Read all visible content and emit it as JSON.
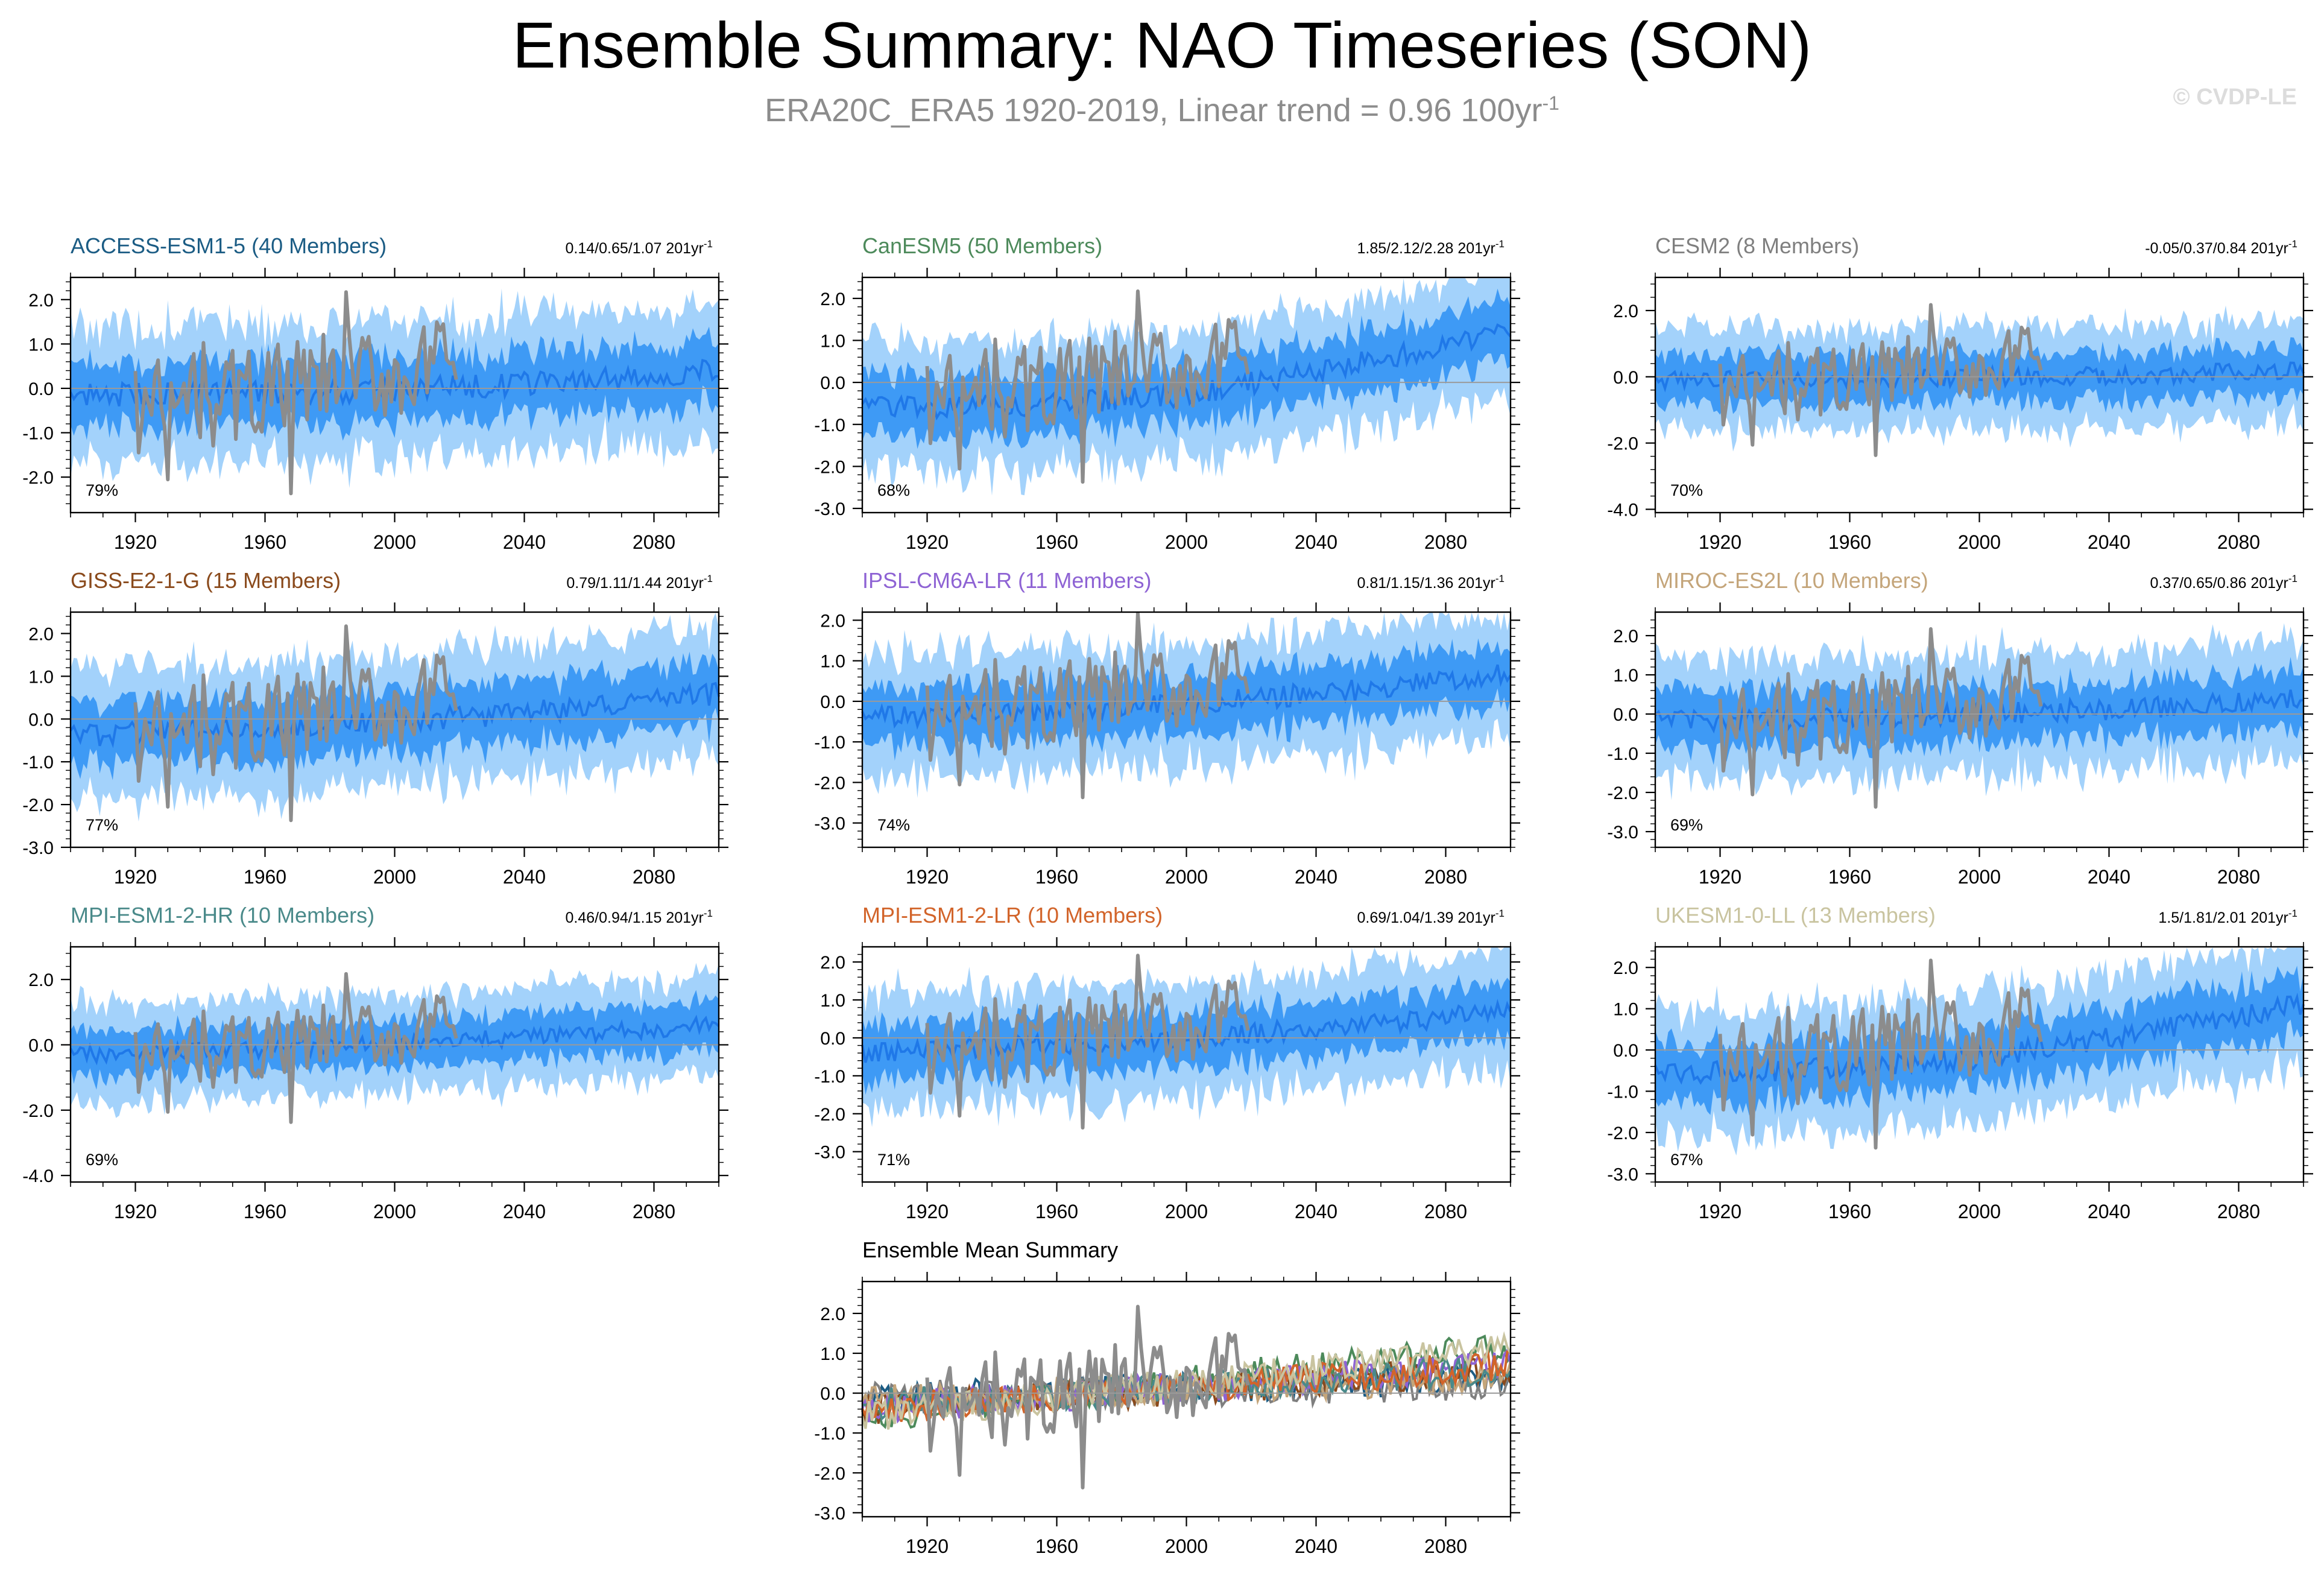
{
  "title": "Ensemble Summary: NAO Timeseries (SON)",
  "subtitle": "ERA20C_ERA5 1920-2019, Linear trend = 0.96 100yr",
  "subtitle_sup": "-1",
  "watermark": "© CVDP-LE",
  "colors": {
    "outer_band": "#a3d2fb",
    "inner_band": "#3e9af5",
    "ensemble_mean": "#1f78e8",
    "observations": "#8c8c8c",
    "zero_line": "#9a9a9a"
  },
  "chart_data": [
    {
      "type": "area",
      "panel": "ACCESS-ESM1-5",
      "title": "ACCESS-ESM1-5 (40 Members)",
      "title_color": "#1b5c84",
      "trend_label": "0.14/0.65/1.07 201yr",
      "trend_sup": "-1",
      "percent_label": "79%",
      "x_range": [
        1900,
        2100
      ],
      "x_ticks": [
        1920,
        1960,
        2000,
        2040,
        2080
      ],
      "ylim": [
        -2.8,
        2.5
      ],
      "y_ticks": [
        -2.0,
        -1.0,
        0.0,
        1.0,
        2.0
      ],
      "y_tick_labels": [
        "-2.0",
        "-1.0",
        "0.0",
        "1.0",
        "2.0"
      ],
      "series": [
        {
          "name": "ensemble mean",
          "x": [
            1900,
            1950,
            2000,
            2050,
            2100
          ],
          "values": [
            -0.15,
            -0.1,
            -0.05,
            0.15,
            0.4
          ]
        },
        {
          "name": "ERA20C_ERA5",
          "x": [
            1920,
            2019
          ],
          "values": [
            -0.5,
            0.5
          ]
        }
      ]
    },
    {
      "type": "area",
      "panel": "CanESM5",
      "title": "CanESM5 (50 Members)",
      "title_color": "#4d8a5b",
      "trend_label": "1.85/2.12/2.28 201yr",
      "trend_sup": "-1",
      "percent_label": "68%",
      "x_range": [
        1900,
        2100
      ],
      "x_ticks": [
        1920,
        1960,
        2000,
        2040,
        2080
      ],
      "ylim": [
        -3.1,
        2.5
      ],
      "y_ticks": [
        -3.0,
        -2.0,
        -1.0,
        0.0,
        1.0,
        2.0
      ],
      "y_tick_labels": [
        "-3.0",
        "-2.0",
        "-1.0",
        "0.0",
        "1.0",
        "2.0"
      ],
      "series": [
        {
          "name": "ensemble mean",
          "x": [
            1900,
            1950,
            2000,
            2050,
            2100
          ],
          "values": [
            -0.6,
            -0.55,
            -0.3,
            0.4,
            1.2
          ]
        },
        {
          "name": "ERA20C_ERA5",
          "x": [
            1920,
            2019
          ],
          "values": [
            -0.5,
            0.5
          ]
        }
      ]
    },
    {
      "type": "area",
      "panel": "CESM2",
      "title": "CESM2 (8 Members)",
      "title_color": "#7f7f7f",
      "trend_label": "-0.05/0.37/0.84 201yr",
      "trend_sup": "-1",
      "percent_label": "70%",
      "x_range": [
        1900,
        2100
      ],
      "x_ticks": [
        1920,
        1960,
        2000,
        2040,
        2080
      ],
      "ylim": [
        -4.1,
        3.0
      ],
      "y_ticks": [
        -4.0,
        -2.0,
        0.0,
        2.0
      ],
      "y_tick_labels": [
        "-4.0",
        "-2.0",
        "0.0",
        "2.0"
      ],
      "series": [
        {
          "name": "ensemble mean",
          "x": [
            1900,
            1950,
            2000,
            2050,
            2100
          ],
          "values": [
            -0.1,
            -0.05,
            0.0,
            0.05,
            0.2
          ]
        },
        {
          "name": "ERA20C_ERA5",
          "x": [
            1920,
            2019
          ],
          "values": [
            -0.5,
            0.5
          ]
        }
      ]
    },
    {
      "type": "area",
      "panel": "GISS-E2-1-G",
      "title": "GISS-E2-1-G (15 Members)",
      "title_color": "#8a4a1c",
      "trend_label": "0.79/1.11/1.44 201yr",
      "trend_sup": "-1",
      "percent_label": "77%",
      "x_range": [
        1900,
        2100
      ],
      "x_ticks": [
        1920,
        1960,
        2000,
        2040,
        2080
      ],
      "ylim": [
        -3.0,
        2.5
      ],
      "y_ticks": [
        -3.0,
        -2.0,
        -1.0,
        0.0,
        1.0,
        2.0
      ],
      "y_tick_labels": [
        "-3.0",
        "-2.0",
        "-1.0",
        "0.0",
        "1.0",
        "2.0"
      ],
      "series": [
        {
          "name": "ensemble mean",
          "x": [
            1900,
            1950,
            2000,
            2050,
            2100
          ],
          "values": [
            -0.4,
            -0.2,
            -0.05,
            0.2,
            0.6
          ]
        },
        {
          "name": "ERA20C_ERA5",
          "x": [
            1920,
            2019
          ],
          "values": [
            -0.5,
            0.5
          ]
        }
      ]
    },
    {
      "type": "area",
      "panel": "IPSL-CM6A-LR",
      "title": "IPSL-CM6A-LR (11 Members)",
      "title_color": "#8e63d4",
      "trend_label": "0.81/1.15/1.36 201yr",
      "trend_sup": "-1",
      "percent_label": "74%",
      "x_range": [
        1900,
        2100
      ],
      "x_ticks": [
        1920,
        1960,
        2000,
        2040,
        2080
      ],
      "ylim": [
        -3.6,
        2.2
      ],
      "y_ticks": [
        -3.0,
        -2.0,
        -1.0,
        0.0,
        1.0,
        2.0
      ],
      "y_tick_labels": [
        "-3.0",
        "-2.0",
        "-1.0",
        "0.0",
        "1.0",
        "2.0"
      ],
      "series": [
        {
          "name": "ensemble mean",
          "x": [
            1900,
            1950,
            2000,
            2050,
            2100
          ],
          "values": [
            -0.4,
            -0.25,
            -0.05,
            0.25,
            0.7
          ]
        },
        {
          "name": "ERA20C_ERA5",
          "x": [
            1920,
            2019
          ],
          "values": [
            -0.5,
            0.5
          ]
        }
      ]
    },
    {
      "type": "area",
      "panel": "MIROC-ES2L",
      "title": "MIROC-ES2L (10 Members)",
      "title_color": "#c4a57a",
      "trend_label": "0.37/0.65/0.86 201yr",
      "trend_sup": "-1",
      "percent_label": "69%",
      "x_range": [
        1900,
        2100
      ],
      "x_ticks": [
        1920,
        1960,
        2000,
        2040,
        2080
      ],
      "ylim": [
        -3.4,
        2.6
      ],
      "y_ticks": [
        -3.0,
        -2.0,
        -1.0,
        0.0,
        1.0,
        2.0
      ],
      "y_tick_labels": [
        "-3.0",
        "-2.0",
        "-1.0",
        "0.0",
        "1.0",
        "2.0"
      ],
      "series": [
        {
          "name": "ensemble mean",
          "x": [
            1900,
            1950,
            2000,
            2050,
            2100
          ],
          "values": [
            -0.2,
            -0.1,
            0.0,
            0.15,
            0.4
          ]
        },
        {
          "name": "ERA20C_ERA5",
          "x": [
            1920,
            2019
          ],
          "values": [
            -0.5,
            0.5
          ]
        }
      ]
    },
    {
      "type": "area",
      "panel": "MPI-ESM1-2-HR",
      "title": "MPI-ESM1-2-HR (10 Members)",
      "title_color": "#4a8a8a",
      "trend_label": "0.46/0.94/1.15 201yr",
      "trend_sup": "-1",
      "percent_label": "69%",
      "x_range": [
        1900,
        2100
      ],
      "x_ticks": [
        1920,
        1960,
        2000,
        2040,
        2080
      ],
      "ylim": [
        -4.2,
        3.0
      ],
      "y_ticks": [
        -4.0,
        -2.0,
        0.0,
        2.0
      ],
      "y_tick_labels": [
        "-4.0",
        "-2.0",
        "0.0",
        "2.0"
      ],
      "series": [
        {
          "name": "ensemble mean",
          "x": [
            1900,
            1950,
            2000,
            2050,
            2100
          ],
          "values": [
            -0.3,
            -0.15,
            0.0,
            0.3,
            0.6
          ]
        },
        {
          "name": "ERA20C_ERA5",
          "x": [
            1920,
            2019
          ],
          "values": [
            -0.5,
            0.5
          ]
        }
      ]
    },
    {
      "type": "area",
      "panel": "MPI-ESM1-2-LR",
      "title": "MPI-ESM1-2-LR (10 Members)",
      "title_color": "#d2642a",
      "trend_label": "0.69/1.04/1.39 201yr",
      "trend_sup": "-1",
      "percent_label": "71%",
      "x_range": [
        1900,
        2100
      ],
      "x_ticks": [
        1920,
        1960,
        2000,
        2040,
        2080
      ],
      "ylim": [
        -3.8,
        2.4
      ],
      "y_ticks": [
        -3.0,
        -2.0,
        -1.0,
        0.0,
        1.0,
        2.0
      ],
      "y_tick_labels": [
        "-3.0",
        "-2.0",
        "-1.0",
        "0.0",
        "1.0",
        "2.0"
      ],
      "series": [
        {
          "name": "ensemble mean",
          "x": [
            1900,
            1950,
            2000,
            2050,
            2100
          ],
          "values": [
            -0.4,
            -0.2,
            0.0,
            0.3,
            0.7
          ]
        },
        {
          "name": "ERA20C_ERA5",
          "x": [
            1920,
            2019
          ],
          "values": [
            -0.5,
            0.5
          ]
        }
      ]
    },
    {
      "type": "area",
      "panel": "UKESM1-0-LL",
      "title": "UKESM1-0-LL (13 Members)",
      "title_color": "#c9c4a0",
      "trend_label": "1.5/1.81/2.01 201yr",
      "trend_sup": "-1",
      "percent_label": "67%",
      "x_range": [
        1900,
        2100
      ],
      "x_ticks": [
        1920,
        1960,
        2000,
        2040,
        2080
      ],
      "ylim": [
        -3.2,
        2.5
      ],
      "y_ticks": [
        -3.0,
        -2.0,
        -1.0,
        0.0,
        1.0,
        2.0
      ],
      "y_tick_labels": [
        "-3.0",
        "-2.0",
        "-1.0",
        "0.0",
        "1.0",
        "2.0"
      ],
      "series": [
        {
          "name": "ensemble mean",
          "x": [
            1900,
            1950,
            2000,
            2050,
            2100
          ],
          "values": [
            -0.6,
            -0.45,
            -0.2,
            0.4,
            1.1
          ]
        },
        {
          "name": "ERA20C_ERA5",
          "x": [
            1920,
            2019
          ],
          "values": [
            -0.5,
            0.5
          ]
        }
      ]
    },
    {
      "type": "line",
      "panel": "Ensemble Mean Summary",
      "title": "Ensemble Mean Summary",
      "title_color": "#000000",
      "x_range": [
        1900,
        2100
      ],
      "x_ticks": [
        1920,
        1960,
        2000,
        2040,
        2080
      ],
      "ylim": [
        -3.1,
        2.8
      ],
      "y_ticks": [
        -3.0,
        -2.0,
        -1.0,
        0.0,
        1.0,
        2.0
      ],
      "y_tick_labels": [
        "-3.0",
        "-2.0",
        "-1.0",
        "0.0",
        "1.0",
        "2.0"
      ],
      "series": [
        {
          "name": "ACCESS-ESM1-5",
          "color": "#1b5c84",
          "x": [
            1900,
            2100
          ],
          "values": [
            -0.15,
            0.4
          ]
        },
        {
          "name": "CanESM5",
          "color": "#4d8a5b",
          "x": [
            1900,
            2100
          ],
          "values": [
            -0.6,
            1.2
          ]
        },
        {
          "name": "CESM2",
          "color": "#7f7f7f",
          "x": [
            1900,
            2100
          ],
          "values": [
            -0.1,
            0.2
          ]
        },
        {
          "name": "GISS-E2-1-G",
          "color": "#8a4a1c",
          "x": [
            1900,
            2100
          ],
          "values": [
            -0.4,
            0.6
          ]
        },
        {
          "name": "IPSL-CM6A-LR",
          "color": "#8e63d4",
          "x": [
            1900,
            2100
          ],
          "values": [
            -0.4,
            0.7
          ]
        },
        {
          "name": "MIROC-ES2L",
          "color": "#c4a57a",
          "x": [
            1900,
            2100
          ],
          "values": [
            -0.2,
            0.4
          ]
        },
        {
          "name": "MPI-ESM1-2-HR",
          "color": "#4a8a8a",
          "x": [
            1900,
            2100
          ],
          "values": [
            -0.3,
            0.6
          ]
        },
        {
          "name": "MPI-ESM1-2-LR",
          "color": "#d2642a",
          "x": [
            1900,
            2100
          ],
          "values": [
            -0.4,
            0.7
          ]
        },
        {
          "name": "UKESM1-0-LL",
          "color": "#c9c4a0",
          "x": [
            1900,
            2100
          ],
          "values": [
            -0.6,
            1.1
          ]
        },
        {
          "name": "ERA20C_ERA5",
          "color": "#8c8c8c",
          "x": [
            1920,
            2019
          ],
          "values": [
            -0.5,
            0.5
          ]
        }
      ]
    }
  ]
}
